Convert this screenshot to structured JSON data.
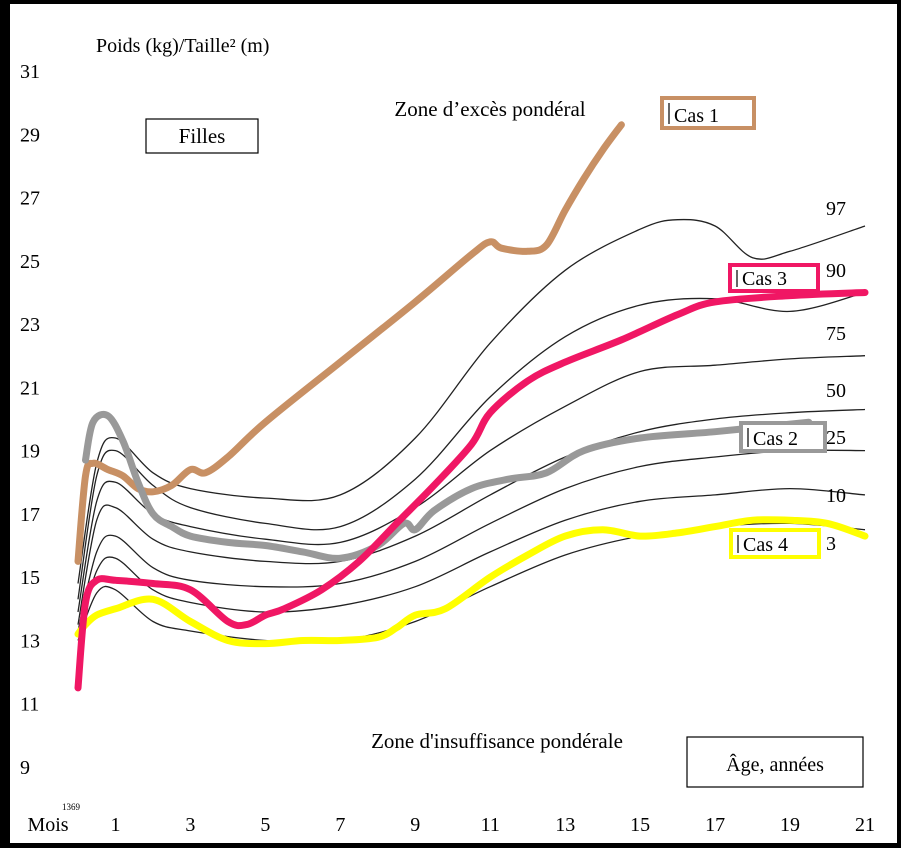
{
  "chart_data": {
    "type": "line",
    "title": "Poids (kg)/Taille² (m)",
    "xlabel": "Âge, années",
    "ylabel": "Poids (kg)/Taille² (m)",
    "xlim": [
      0,
      21
    ],
    "ylim": [
      8,
      32
    ],
    "x_ticks": [
      {
        "value": 0,
        "label": "Mois"
      },
      {
        "value": 1,
        "label": "1"
      },
      {
        "value": 3,
        "label": "3"
      },
      {
        "value": 5,
        "label": "5"
      },
      {
        "value": 7,
        "label": "7"
      },
      {
        "value": 9,
        "label": "9"
      },
      {
        "value": 11,
        "label": "11"
      },
      {
        "value": 13,
        "label": "13"
      },
      {
        "value": 15,
        "label": "15"
      },
      {
        "value": 17,
        "label": "17"
      },
      {
        "value": 19,
        "label": "19"
      },
      {
        "value": 21,
        "label": "21"
      }
    ],
    "x_tick_note": "1369",
    "y_ticks": [
      9,
      11,
      13,
      15,
      17,
      19,
      21,
      23,
      25,
      27,
      29,
      31
    ],
    "zone_labels": {
      "excess": "Zone d’excès pondéral",
      "insufficient": "Zone d'insuffisance pondérale"
    },
    "group_label": "Filles",
    "age_label": "Âge, années",
    "percentiles": [
      {
        "name": "97",
        "x": [
          0,
          0.5,
          1,
          2,
          3,
          5,
          7,
          9,
          11,
          13,
          15,
          16,
          17,
          18,
          19,
          21
        ],
        "y": [
          14.8,
          18.6,
          19.4,
          18.3,
          17.8,
          17.5,
          17.6,
          19.4,
          22.4,
          24.7,
          26.0,
          26.3,
          26.1,
          25.1,
          25.3,
          26.1
        ]
      },
      {
        "name": "90",
        "x": [
          0,
          0.5,
          1,
          2,
          3,
          5,
          7,
          9,
          11,
          13,
          15,
          17,
          19,
          21
        ],
        "y": [
          14.3,
          18.2,
          19.0,
          17.9,
          17.2,
          16.7,
          16.6,
          18.1,
          20.7,
          22.6,
          23.6,
          23.8,
          23.4,
          24.0
        ]
      },
      {
        "name": "75",
        "x": [
          0,
          0.5,
          1,
          2,
          3,
          5,
          7,
          9,
          11,
          13,
          15,
          17,
          19,
          21
        ],
        "y": [
          13.9,
          17.4,
          18.0,
          17.0,
          16.6,
          16.2,
          16.1,
          17.2,
          19.0,
          20.4,
          21.5,
          21.7,
          21.9,
          22.0
        ]
      },
      {
        "name": "50",
        "x": [
          0,
          0.5,
          1,
          2,
          3,
          5,
          7,
          9,
          11,
          13,
          15,
          17,
          19,
          21
        ],
        "y": [
          13.5,
          16.8,
          17.2,
          16.2,
          15.8,
          15.5,
          15.5,
          16.3,
          17.6,
          18.8,
          19.6,
          20.0,
          20.2,
          20.3
        ]
      },
      {
        "name": "25",
        "x": [
          0,
          0.5,
          1,
          2,
          3,
          5,
          7,
          9,
          11,
          13,
          15,
          17,
          19,
          21
        ],
        "y": [
          13.3,
          15.8,
          16.3,
          15.3,
          14.9,
          14.7,
          14.8,
          15.5,
          16.7,
          17.8,
          18.5,
          18.8,
          19.0,
          19.0
        ]
      },
      {
        "name": "10",
        "x": [
          0,
          0.5,
          1,
          2,
          3,
          5,
          7,
          9,
          11,
          13,
          15,
          17,
          19,
          21
        ],
        "y": [
          13.1,
          15.2,
          15.6,
          14.6,
          14.2,
          13.9,
          14.1,
          14.7,
          15.8,
          16.8,
          17.4,
          17.6,
          17.8,
          17.6
        ]
      },
      {
        "name": "3",
        "x": [
          0,
          0.5,
          1,
          2,
          3,
          5,
          7,
          9,
          11,
          13,
          15,
          17,
          19,
          21
        ],
        "y": [
          13.0,
          14.5,
          14.6,
          13.6,
          13.3,
          13.0,
          13.0,
          13.6,
          14.7,
          15.7,
          16.3,
          16.6,
          16.7,
          16.5
        ]
      }
    ],
    "series": [
      {
        "name": "Cas 1",
        "color": "#c89064",
        "x": [
          0,
          0.2,
          0.4,
          0.8,
          1.2,
          1.6,
          2.0,
          2.5,
          3.0,
          3.4,
          4.0,
          5.0,
          7.0,
          9.0,
          10.5,
          11.0,
          11.3,
          12.0,
          12.5,
          13.0,
          13.5,
          14.0,
          14.5
        ],
        "y": [
          15.5,
          18.2,
          18.6,
          18.4,
          18.2,
          17.8,
          17.7,
          17.9,
          18.4,
          18.3,
          18.8,
          19.9,
          21.8,
          23.7,
          25.2,
          25.6,
          25.4,
          25.3,
          25.5,
          26.6,
          27.6,
          28.5,
          29.3
        ]
      },
      {
        "name": "Cas 2",
        "color": "#999999",
        "x": [
          0.2,
          0.4,
          0.8,
          1.2,
          1.6,
          2.0,
          2.5,
          3.0,
          4.0,
          5.0,
          6.0,
          7.0,
          8.0,
          8.7,
          9.0,
          9.5,
          10.5,
          11.5,
          12.5,
          13.5,
          15.0,
          17.0,
          19.5
        ],
        "y": [
          18.7,
          19.9,
          20.1,
          19.3,
          18.0,
          17.0,
          16.6,
          16.3,
          16.1,
          16.0,
          15.8,
          15.6,
          16.0,
          16.7,
          16.5,
          17.1,
          17.8,
          18.1,
          18.3,
          19.0,
          19.4,
          19.6,
          19.9
        ]
      },
      {
        "name": "Cas 3",
        "color": "#f01764",
        "x": [
          0,
          0.2,
          0.5,
          1.0,
          2.0,
          3.0,
          4.0,
          4.5,
          5.0,
          5.5,
          6.5,
          7.5,
          8.5,
          9.5,
          10.5,
          11.0,
          12.0,
          13.0,
          14.5,
          16.0,
          17.0,
          19.0,
          21.0
        ],
        "y": [
          11.5,
          14.2,
          14.9,
          14.9,
          14.8,
          14.6,
          13.6,
          13.5,
          13.8,
          14.0,
          14.6,
          15.5,
          16.7,
          17.9,
          19.2,
          20.2,
          21.2,
          21.8,
          22.5,
          23.3,
          23.7,
          23.9,
          24.0
        ]
      },
      {
        "name": "Cas 4",
        "color": "#ffff00",
        "x": [
          0,
          0.2,
          0.5,
          1.0,
          2.0,
          3.0,
          4.0,
          5.0,
          6.0,
          7.0,
          8.0,
          8.5,
          9.0,
          9.8,
          11.0,
          12.0,
          13.0,
          14.0,
          15.0,
          16.0,
          17.0,
          18.0,
          19.0,
          20.0,
          21.0
        ],
        "y": [
          13.2,
          13.5,
          13.8,
          14.0,
          14.3,
          13.6,
          13.0,
          12.9,
          13.0,
          13.0,
          13.1,
          13.4,
          13.8,
          14.0,
          15.0,
          15.7,
          16.3,
          16.5,
          16.3,
          16.4,
          16.6,
          16.8,
          16.8,
          16.7,
          16.3
        ]
      }
    ]
  }
}
